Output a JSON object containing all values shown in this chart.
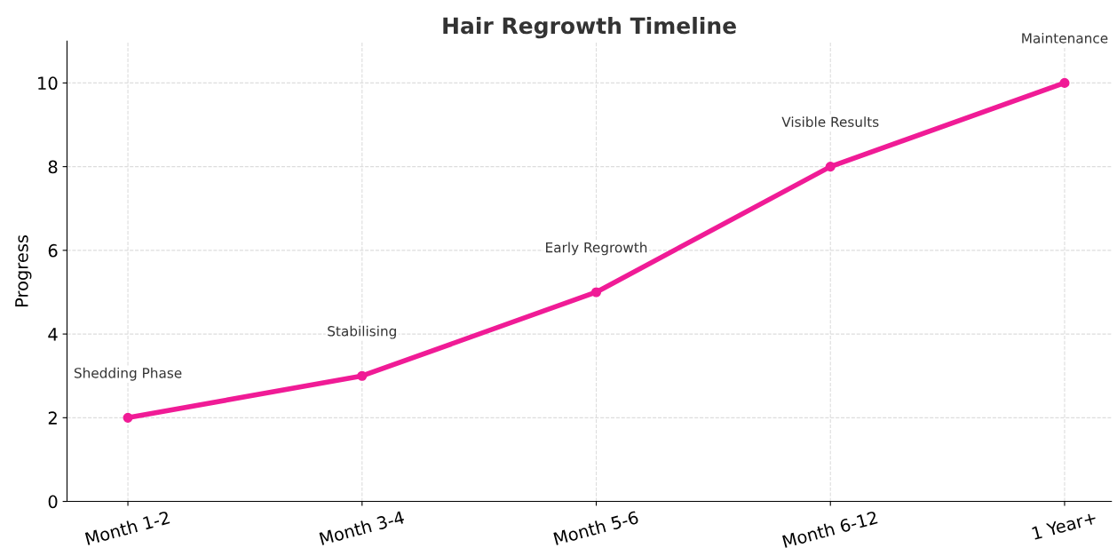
{
  "chart_data": {
    "type": "line",
    "title": "Hair Regrowth Timeline",
    "ylabel": "Progress",
    "categories": [
      "Month 1-2",
      "Month 3-4",
      "Month 5-6",
      "Month 6-12",
      "1 Year+"
    ],
    "series": [
      {
        "color": "#f01b96",
        "values": [
          2,
          3,
          5,
          8,
          10
        ]
      }
    ],
    "ylim": [
      0,
      11
    ],
    "yticks": [
      0,
      2,
      4,
      6,
      8,
      10
    ],
    "grid": true,
    "marker": "circle",
    "line_style": "solid",
    "annotations": [
      {
        "text": "Shedding Phase",
        "x": "Month 1-2",
        "y": 2
      },
      {
        "text": "Stabilising",
        "x": "Month 3-4",
        "y": 3
      },
      {
        "text": "Early Regrowth",
        "x": "Month 5-6",
        "y": 5
      },
      {
        "text": "Visible Results",
        "x": "Month 6-12",
        "y": 8
      },
      {
        "text": "Maintenance",
        "x": "1 Year+",
        "y": 10
      }
    ]
  }
}
